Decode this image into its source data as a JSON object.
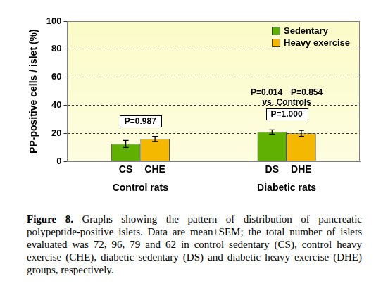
{
  "chart_data": {
    "type": "bar",
    "y_label": "PP-positive cells / islet (%)",
    "categories": [
      "Control rats",
      "Diabetic rats"
    ],
    "series": [
      {
        "name": "Sedentary",
        "color": "#5fb000",
        "values": [
          12.5,
          21
        ],
        "errors": [
          2.5,
          1.5
        ],
        "bar_labels": [
          "CS",
          "DS"
        ]
      },
      {
        "name": "Heavy exercise",
        "color": "#f5b800",
        "values": [
          16,
          20
        ],
        "errors": [
          1.8,
          2.2
        ],
        "bar_labels": [
          "CHE",
          "DHE"
        ]
      }
    ],
    "ylim": [
      0,
      100
    ],
    "yticks": [
      0,
      20,
      40,
      60,
      80,
      100
    ],
    "grid": true,
    "legend": "upper right",
    "comparisons": [
      {
        "category": "Control rats",
        "text": "P=0.987"
      },
      {
        "category": "Diabetic rats",
        "text": "P=1.000"
      }
    ],
    "vs_controls": {
      "category": "Diabetic rats",
      "label": "vs. Controls",
      "texts": [
        "P=0.014",
        "P=0.854"
      ]
    },
    "caption": {
      "label": "Figure 8.",
      "text": "Graphs showing the pattern of distribution of pancreatic polypeptide-positive islets. Data are mean±SEM; the total number of islets evaluated was 72, 96, 79 and 62 in control sedentary (CS), control heavy exercise (CHE), diabetic sedentary (DS) and diabetic heavy exercise (DHE) groups, respectively."
    }
  }
}
